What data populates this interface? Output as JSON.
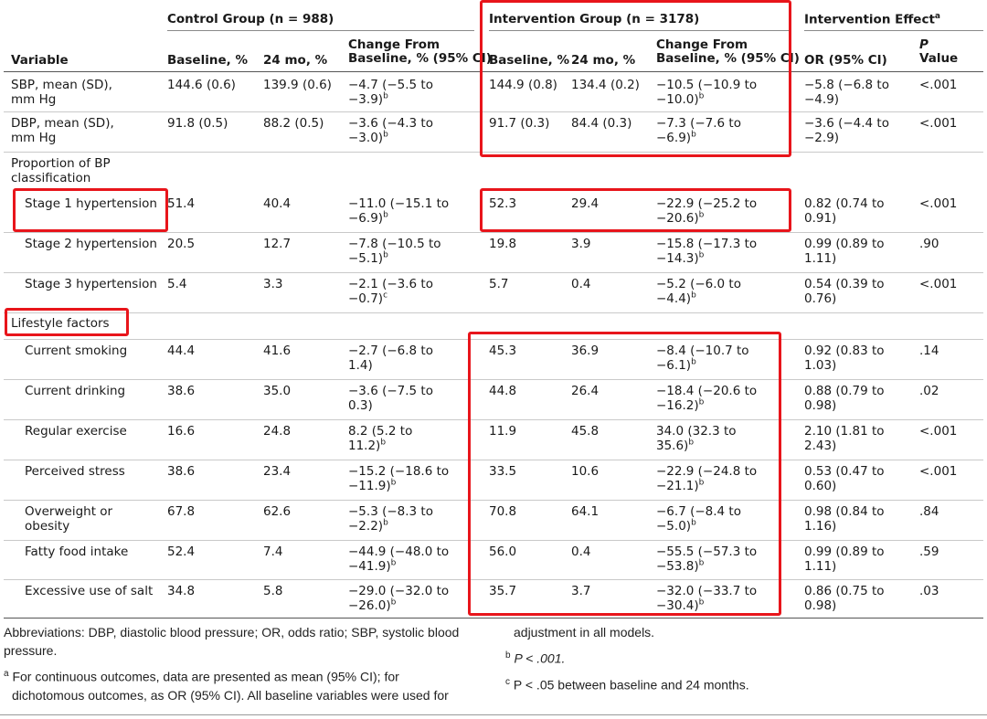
{
  "groups": {
    "control": "Control Group (n = 988)",
    "intervention": "Intervention Group (n = 3178)",
    "effect": "Intervention Effect",
    "effect_sup": "a"
  },
  "columns": {
    "variable": "Variable",
    "c_baseline": "Baseline, %",
    "c_24mo": "24 mo, %",
    "c_change_1": "Change From",
    "c_change_2": "Baseline, % (95% CI)",
    "i_baseline": "Baseline, %",
    "i_24mo": "24 mo, %",
    "i_change_1": "Change From",
    "i_change_2": "Baseline, % (95% CI)",
    "or": "OR (95% CI)",
    "p_1": "P",
    "p_2": "Value"
  },
  "rows": [
    {
      "label": [
        "SBP, mean (SD),",
        "mm Hg"
      ],
      "cb": "144.6 (0.6)",
      "c24": "139.9 (0.6)",
      "cc": [
        "−4.7 (−5.5 to",
        "−3.9)"
      ],
      "ccs": "b",
      "ib": "144.9 (0.8)",
      "i24": "134.4 (0.2)",
      "ic": [
        "−10.5 (−10.9 to",
        "−10.0)"
      ],
      "ics": "b",
      "or": [
        "−5.8 (−6.8 to",
        "−4.9)"
      ],
      "p": "<.001"
    },
    {
      "label": [
        "DBP, mean (SD),",
        "mm Hg"
      ],
      "cb": "91.8 (0.5)",
      "c24": "88.2 (0.5)",
      "cc": [
        "−3.6 (−4.3 to",
        "−3.0)"
      ],
      "ccs": "b",
      "ib": "91.7 (0.3)",
      "i24": "84.4 (0.3)",
      "ic": [
        "−7.3 (−7.6 to",
        "−6.9)"
      ],
      "ics": "b",
      "or": [
        "−3.6 (−4.4 to",
        "−2.9)"
      ],
      "p": "<.001"
    },
    {
      "label": [
        "Stage 1 hypertension"
      ],
      "cb": "51.4",
      "c24": "40.4",
      "cc": [
        "−11.0 (−15.1 to",
        "−6.9)"
      ],
      "ccs": "b",
      "ib": "52.3",
      "i24": "29.4",
      "ic": [
        "−22.9 (−25.2 to",
        "−20.6)"
      ],
      "ics": "b",
      "or": [
        "0.82 (0.74 to",
        "0.91)"
      ],
      "p": "<.001"
    },
    {
      "label": [
        "Stage 2 hypertension"
      ],
      "cb": "20.5",
      "c24": "12.7",
      "cc": [
        "−7.8 (−10.5 to",
        "−5.1)"
      ],
      "ccs": "b",
      "ib": "19.8",
      "i24": "3.9",
      "ic": [
        "−15.8 (−17.3 to",
        "−14.3)"
      ],
      "ics": "b",
      "or": [
        "0.99 (0.89 to",
        "1.11)"
      ],
      "p": ".90"
    },
    {
      "label": [
        "Stage 3 hypertension"
      ],
      "cb": "5.4",
      "c24": "3.3",
      "cc": [
        "−2.1 (−3.6 to",
        "−0.7)"
      ],
      "ccs": "c",
      "ib": "5.7",
      "i24": "0.4",
      "ic": [
        "−5.2 (−6.0 to",
        "−4.4)"
      ],
      "ics": "b",
      "or": [
        "0.54 (0.39 to",
        "0.76)"
      ],
      "p": "<.001"
    },
    {
      "label": [
        "Current smoking"
      ],
      "cb": "44.4",
      "c24": "41.6",
      "cc": [
        "−2.7 (−6.8 to",
        "1.4)"
      ],
      "ccs": "",
      "ib": "45.3",
      "i24": "36.9",
      "ic": [
        "−8.4 (−10.7 to",
        "−6.1)"
      ],
      "ics": "b",
      "or": [
        "0.92 (0.83 to",
        "1.03)"
      ],
      "p": ".14"
    },
    {
      "label": [
        "Current drinking"
      ],
      "cb": "38.6",
      "c24": "35.0",
      "cc": [
        "−3.6 (−7.5 to",
        "0.3)"
      ],
      "ccs": "",
      "ib": "44.8",
      "i24": "26.4",
      "ic": [
        "−18.4 (−20.6 to",
        "−16.2)"
      ],
      "ics": "b",
      "or": [
        "0.88 (0.79 to",
        "0.98)"
      ],
      "p": ".02"
    },
    {
      "label": [
        "Regular exercise"
      ],
      "cb": "16.6",
      "c24": "24.8",
      "cc": [
        "8.2 (5.2 to",
        "11.2)"
      ],
      "ccs": "b",
      "ib": "11.9",
      "i24": "45.8",
      "ic": [
        "34.0 (32.3 to",
        "35.6)"
      ],
      "ics": "b",
      "or": [
        "2.10 (1.81 to",
        "2.43)"
      ],
      "p": "<.001"
    },
    {
      "label": [
        "Perceived stress"
      ],
      "cb": "38.6",
      "c24": "23.4",
      "cc": [
        "−15.2 (−18.6 to",
        "−11.9)"
      ],
      "ccs": "b",
      "ib": "33.5",
      "i24": "10.6",
      "ic": [
        "−22.9 (−24.8 to",
        "−21.1)"
      ],
      "ics": "b",
      "or": [
        "0.53 (0.47 to",
        "0.60)"
      ],
      "p": "<.001"
    },
    {
      "label": [
        "Overweight or",
        "obesity"
      ],
      "cb": "67.8",
      "c24": "62.6",
      "cc": [
        "−5.3 (−8.3 to",
        "−2.2)"
      ],
      "ccs": "b",
      "ib": "70.8",
      "i24": "64.1",
      "ic": [
        "−6.7 (−8.4 to",
        "−5.0)"
      ],
      "ics": "b",
      "or": [
        "0.98 (0.84 to",
        "1.16)"
      ],
      "p": ".84"
    },
    {
      "label": [
        "Fatty food intake"
      ],
      "cb": "52.4",
      "c24": "7.4",
      "cc": [
        "−44.9 (−48.0 to",
        "−41.9)"
      ],
      "ccs": "b",
      "ib": "56.0",
      "i24": "0.4",
      "ic": [
        "−55.5 (−57.3 to",
        "−53.8)"
      ],
      "ics": "b",
      "or": [
        "0.99 (0.89 to",
        "1.11)"
      ],
      "p": ".59"
    },
    {
      "label": [
        "Excessive use of salt"
      ],
      "cb": "34.8",
      "c24": "5.8",
      "cc": [
        "−29.0 (−32.0 to",
        "−26.0)"
      ],
      "ccs": "b",
      "ib": "35.7",
      "i24": "3.7",
      "ic": [
        "−32.0 (−33.7 to",
        "−30.4)"
      ],
      "ics": "b",
      "or": [
        "0.86 (0.75 to",
        "0.98)"
      ],
      "p": ".03"
    }
  ],
  "sections": {
    "bp": [
      "Proportion of BP",
      "classification"
    ],
    "lifestyle": "Lifestyle factors"
  },
  "footnotes": {
    "abbrev_1": "Abbreviations: DBP, diastolic blood pressure; OR, odds ratio; SBP, systolic blood",
    "abbrev_2": "pressure.",
    "a_mark": "a",
    "a_1": " For continuous outcomes, data are presented as mean (95% CI); for",
    "a_2": "dichotomous outcomes, as OR (95% CI). All baseline variables were used for",
    "a_3": "adjustment in all models.",
    "b_mark": "b",
    "b_text": "P < .001.",
    "c_mark": "c",
    "c_text": "P < .05 between baseline and 24 months."
  },
  "highlight_color": "#e8151b"
}
